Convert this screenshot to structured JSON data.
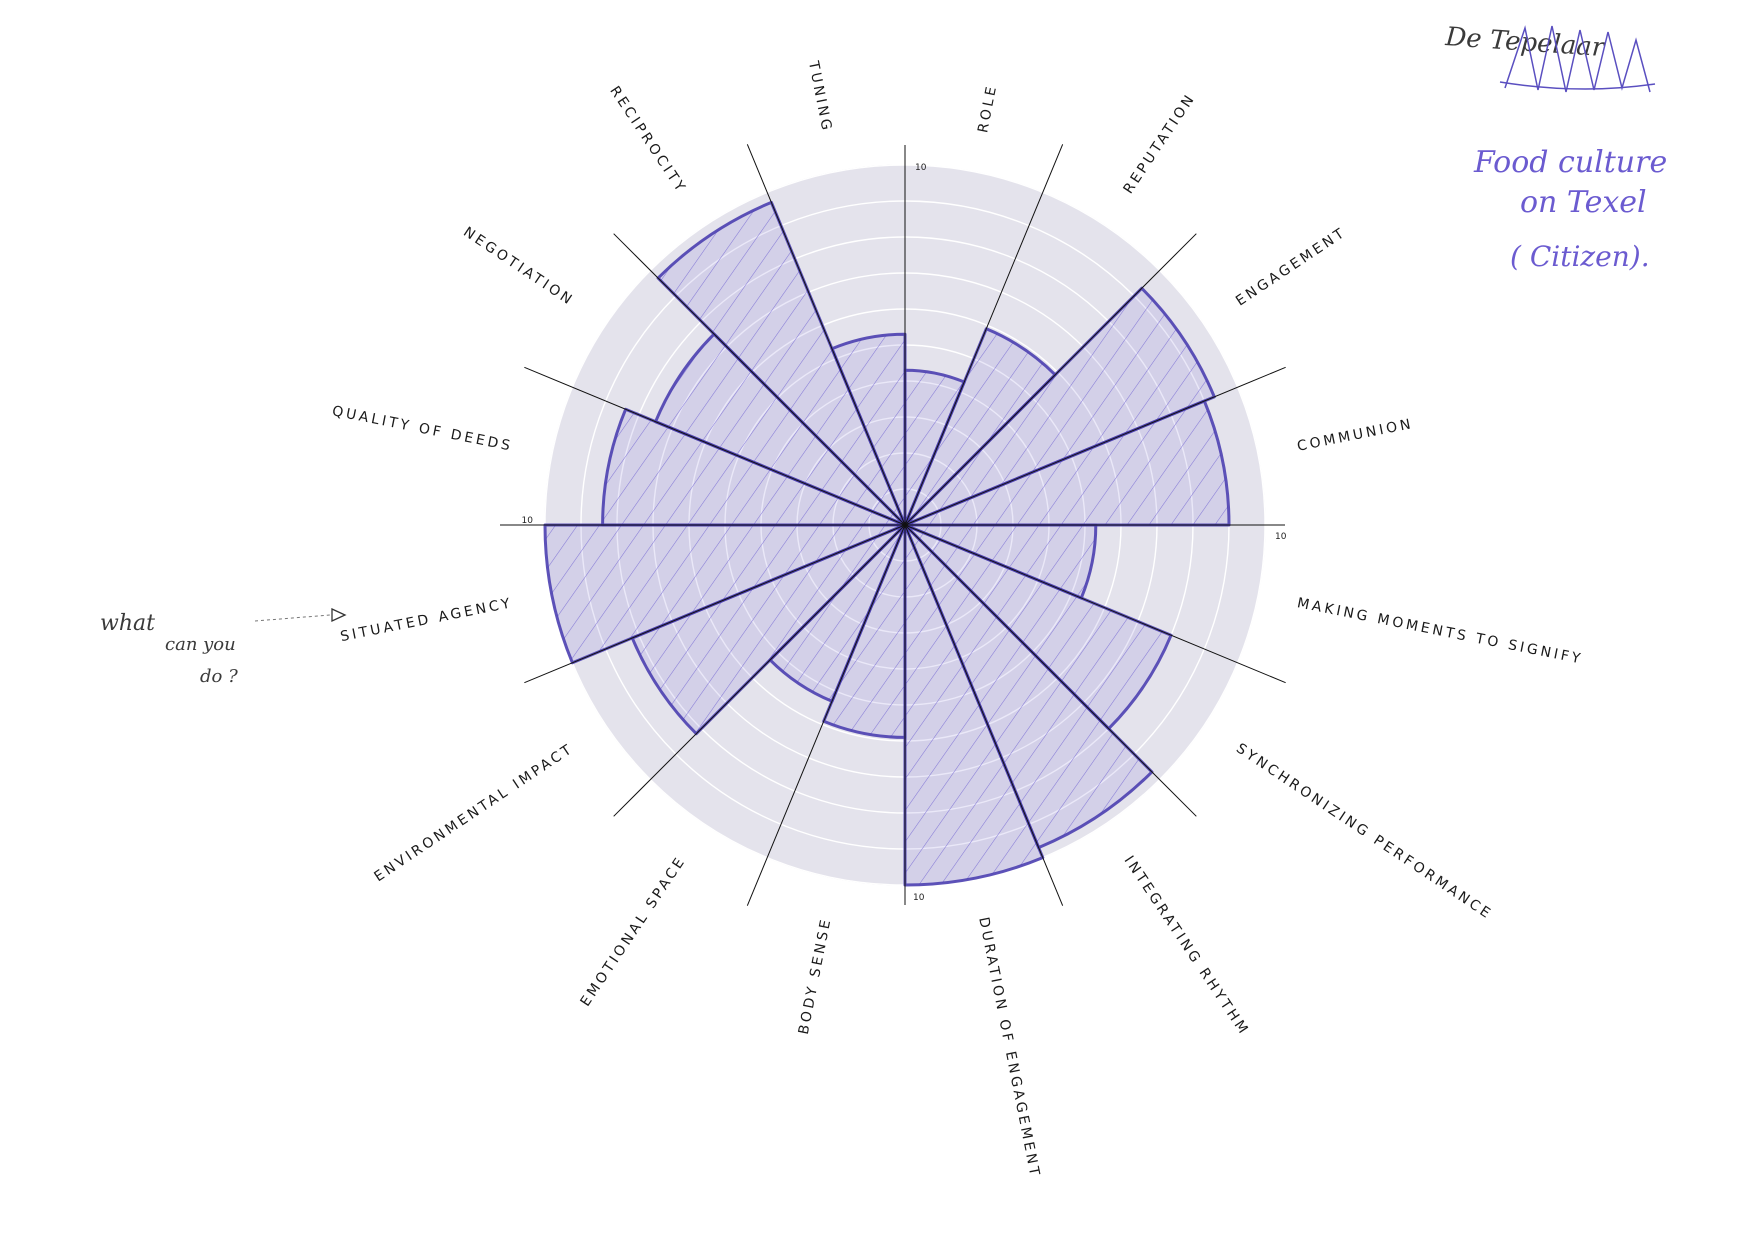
{
  "chart_data": {
    "type": "radial-bar",
    "axis_max": 10,
    "axis_end_label": "10",
    "categories": [
      "ROLE",
      "REPUTATION",
      "ENGAGEMENT",
      "COMMUNION",
      "MAKING MOMENTS TO SIGNIFY",
      "SYNCHRONIZING PERFORMANCE",
      "INTEGRATING RHYTHM",
      "DURATION OF ENGAGEMENT",
      "BODY SENSE",
      "EMOTIONAL SPACE",
      "ENVIRONMENTAL IMPACT",
      "SITUATED AGENCY",
      "QUALITY OF DEEDS",
      "NEGOTIATION",
      "RECIPROCITY",
      "TUNING"
    ],
    "values": [
      4.3,
      5.9,
      9.3,
      9.0,
      5.3,
      8.0,
      9.7,
      10.0,
      5.9,
      5.3,
      8.2,
      10.0,
      8.4,
      7.5,
      9.7,
      5.3
    ],
    "colors": {
      "disc": "#e4e3ec",
      "rings": "#ffffff",
      "spokes": "#111111",
      "fill": "#7b6fd6",
      "outline": "#4b3fb0"
    }
  },
  "annotations": {
    "top_right_signature": "De Tepelaar",
    "top_right_note": [
      "Food culture",
      "on Texel",
      "( Citizen)."
    ],
    "left_note": [
      "what",
      "can you",
      "do ?"
    ]
  }
}
